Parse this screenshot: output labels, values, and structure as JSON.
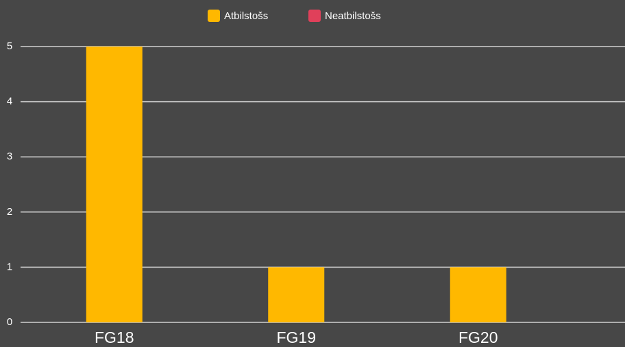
{
  "chart_data": {
    "type": "bar",
    "categories": [
      "FG18",
      "FG19",
      "FG20"
    ],
    "series": [
      {
        "name": "Atbilstošs",
        "color": "#ffb800",
        "values": [
          5,
          1,
          1
        ]
      },
      {
        "name": "Neatbilstošs",
        "color": "#e0405a",
        "values": [
          0,
          0,
          0
        ]
      }
    ],
    "ylim": [
      0,
      5
    ],
    "yticks": [
      0,
      1,
      2,
      3,
      4,
      5
    ],
    "grid": true,
    "legend": "top"
  }
}
